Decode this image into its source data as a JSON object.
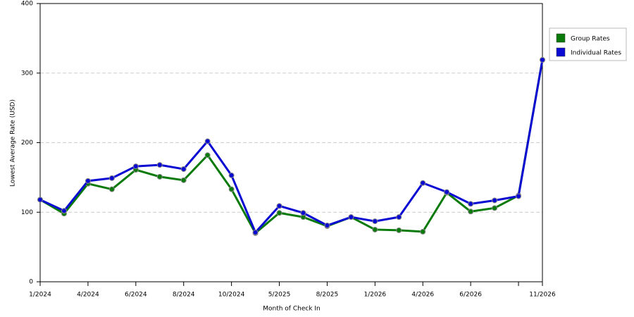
{
  "chart_data": {
    "type": "line",
    "x_label": "Month of Check In",
    "y_label": "Lowest Average Rate (USD)",
    "categories": [
      "1/2024",
      null,
      "4/2024",
      null,
      "6/2024",
      null,
      "8/2024",
      null,
      "10/2024",
      null,
      "5/2025",
      null,
      "8/2025",
      null,
      "1/2026",
      null,
      "4/2026",
      null,
      "6/2026",
      null,
      null,
      "11/2026"
    ],
    "series": [
      {
        "name": "Group Rates",
        "color": "#0a7a0a",
        "values": [
          118,
          98,
          141,
          133,
          161,
          151,
          146,
          182,
          133,
          70,
          99,
          93,
          80,
          93,
          75,
          74,
          72,
          128,
          101,
          106,
          124,
          319
        ]
      },
      {
        "name": "Individual Rates",
        "color": "#0a0ad2",
        "values": [
          118,
          102,
          145,
          149,
          166,
          168,
          162,
          202,
          153,
          71,
          109,
          99,
          81,
          93,
          87,
          93,
          142,
          129,
          112,
          117,
          123,
          319
        ]
      }
    ],
    "ylim": [
      0,
      400
    ],
    "yticks": [
      0,
      100,
      200,
      300,
      400
    ],
    "grid": true,
    "legend": "right"
  }
}
